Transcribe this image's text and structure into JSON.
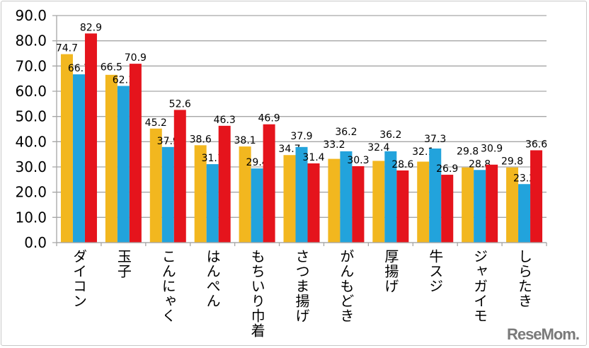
{
  "chart_data": {
    "type": "bar",
    "categories": [
      "ダイコン",
      "玉子",
      "こんにゃく",
      "はんぺん",
      "もちいり巾着",
      "さつま揚げ",
      "がんもどき",
      "厚揚げ",
      "牛スジ",
      "ジャガイモ",
      "しらたき"
    ],
    "series": [
      {
        "color": "#f2b71f",
        "values": [
          74.7,
          66.5,
          45.2,
          38.6,
          38.1,
          34.7,
          33.2,
          32.4,
          32.1,
          29.8,
          29.8
        ]
      },
      {
        "color": "#22a3dc",
        "values": [
          66.7,
          62.1,
          37.9,
          31.1,
          29.4,
          37.9,
          36.2,
          36.2,
          37.3,
          28.8,
          23.2
        ]
      },
      {
        "color": "#e5141c",
        "values": [
          82.9,
          70.9,
          52.6,
          46.3,
          46.9,
          31.4,
          30.3,
          28.6,
          26.9,
          30.9,
          36.6
        ]
      }
    ],
    "yticks": [
      "0.0",
      "10.0",
      "20.0",
      "30.0",
      "40.0",
      "50.0",
      "60.0",
      "70.0",
      "80.0",
      "90.0"
    ],
    "ylim": [
      0,
      90
    ],
    "grid": true,
    "data_labels": true
  },
  "watermark": "ReseMom."
}
